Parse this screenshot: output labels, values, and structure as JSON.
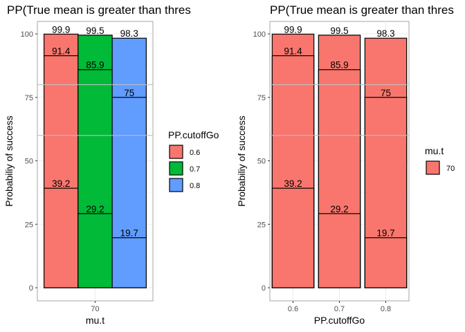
{
  "chart_data": [
    {
      "type": "bar",
      "title": "PP(True mean is greater than thres",
      "xlabel": "mu.t",
      "ylabel": "Probabiliy of success",
      "categories": [
        "70"
      ],
      "ylim": [
        0,
        100
      ],
      "yticks": [
        0,
        25,
        50,
        75,
        100
      ],
      "grid": true,
      "reference_lines_y": [
        80,
        60
      ],
      "legend": {
        "title": "PP.cutoffGo",
        "position": "right",
        "entries": [
          {
            "label": "0.6",
            "color": "#F8766D"
          },
          {
            "label": "0.7",
            "color": "#00BA38"
          },
          {
            "label": "0.8",
            "color": "#619CFF"
          }
        ]
      },
      "groups": [
        {
          "name": "0.6",
          "color": "#F8766D",
          "category": "70",
          "values": [
            99.9,
            91.4,
            39.2
          ]
        },
        {
          "name": "0.7",
          "color": "#00BA38",
          "category": "70",
          "values": [
            99.5,
            85.9,
            29.2
          ]
        },
        {
          "name": "0.8",
          "color": "#619CFF",
          "category": "70",
          "values": [
            98.3,
            75,
            19.7
          ]
        }
      ]
    },
    {
      "type": "bar",
      "title": "PP(True mean is greater than thres",
      "xlabel": "PP.cutoffGo",
      "ylabel": "Probabiliy of success",
      "categories": [
        "0.6",
        "0.7",
        "0.8"
      ],
      "ylim": [
        0,
        100
      ],
      "yticks": [
        0,
        25,
        50,
        75,
        100
      ],
      "grid": true,
      "reference_lines_y": [
        80,
        60
      ],
      "legend": {
        "title": "mu.t",
        "position": "right",
        "entries": [
          {
            "label": "70",
            "color": "#F8766D"
          }
        ]
      },
      "groups": [
        {
          "name": "70",
          "color": "#F8766D",
          "category": "0.6",
          "values": [
            99.9,
            91.4,
            39.2
          ]
        },
        {
          "name": "70",
          "color": "#F8766D",
          "category": "0.7",
          "values": [
            99.5,
            85.9,
            29.2
          ]
        },
        {
          "name": "70",
          "color": "#F8766D",
          "category": "0.8",
          "values": [
            98.3,
            75,
            19.7
          ]
        }
      ]
    }
  ]
}
